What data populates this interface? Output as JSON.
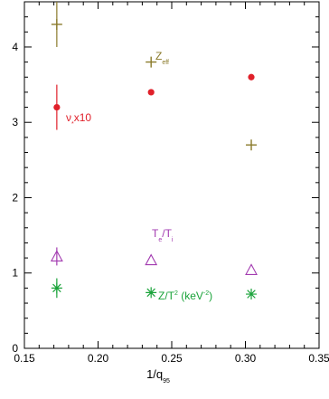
{
  "chart_data": {
    "type": "scatter",
    "xlabel_main": "1/q",
    "xlabel_sub": "95",
    "ylabel": "",
    "xlim": [
      0.15,
      0.35
    ],
    "ylim": [
      0,
      4.6
    ],
    "x_ticks": [
      "0.15",
      "0.20",
      "0.25",
      "0.30",
      "0.35"
    ],
    "x_tick_values": [
      0.15,
      0.2,
      0.25,
      0.3,
      0.35
    ],
    "y_ticks": [
      "0",
      "1",
      "2",
      "3",
      "4"
    ],
    "y_tick_values": [
      0,
      1,
      2,
      3,
      4
    ],
    "series": [
      {
        "key": "zeff",
        "marker": "plus",
        "color": "#8a7a2a",
        "points": [
          {
            "x": 0.172,
            "y": 4.3,
            "err": 0.3
          },
          {
            "x": 0.236,
            "y": 3.8,
            "err": 0
          },
          {
            "x": 0.304,
            "y": 2.7,
            "err": 0
          }
        ]
      },
      {
        "key": "nu",
        "marker": "dot",
        "color": "#e0202a",
        "points": [
          {
            "x": 0.172,
            "y": 3.2,
            "err": 0.3
          },
          {
            "x": 0.236,
            "y": 3.4,
            "err": 0
          },
          {
            "x": 0.304,
            "y": 3.6,
            "err": 0
          }
        ]
      },
      {
        "key": "te_ti",
        "marker": "triangle",
        "color": "#a23ab0",
        "points": [
          {
            "x": 0.172,
            "y": 1.22,
            "err": 0.12
          },
          {
            "x": 0.236,
            "y": 1.17,
            "err": 0
          },
          {
            "x": 0.304,
            "y": 1.04,
            "err": 0
          }
        ]
      },
      {
        "key": "z_t2",
        "marker": "asterisk",
        "color": "#1aa33a",
        "points": [
          {
            "x": 0.172,
            "y": 0.8,
            "err": 0.13
          },
          {
            "x": 0.236,
            "y": 0.74,
            "err": 0
          },
          {
            "x": 0.304,
            "y": 0.72,
            "err": 0
          }
        ]
      }
    ],
    "annotations": {
      "zeff": {
        "main": "Z",
        "sub": "eff",
        "color": "#8a7a2a"
      },
      "nu": {
        "main": "ν",
        "sub": "*",
        "tail": "x10",
        "color": "#e0202a"
      },
      "te_ti": {
        "main1": "T",
        "sub1": "e",
        "mid": "/T",
        "sub2": "i",
        "color": "#a23ab0"
      },
      "z_t2": {
        "main1": "Z/T",
        "sup1": "2",
        "mid": " (keV",
        "sup2": "-2",
        "tail": ")",
        "color": "#1aa33a"
      }
    }
  }
}
